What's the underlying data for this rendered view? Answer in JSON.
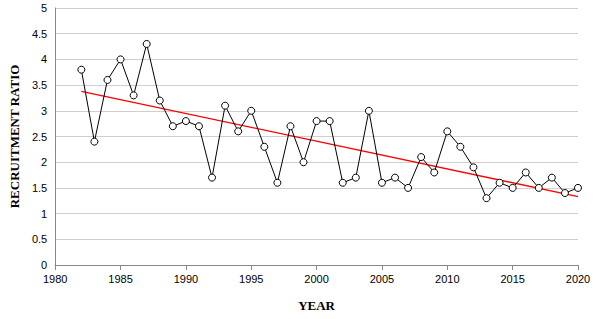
{
  "chart_data": {
    "type": "line",
    "x_label": "YEAR",
    "y_label": "RECRUITMENT RATIO",
    "xlim": [
      1980,
      2020
    ],
    "xticks": [
      1980,
      1985,
      1990,
      1995,
      2000,
      2005,
      2010,
      2015,
      2020
    ],
    "ylim": [
      0,
      5
    ],
    "yticks": [
      0,
      0.5,
      1,
      1.5,
      2,
      2.5,
      3,
      3.5,
      4,
      4.5,
      5
    ],
    "grid": true,
    "series": [
      {
        "type": "line",
        "color": "#000000",
        "marker": "circle",
        "line_style": "solid",
        "x": [
          1982,
          1983,
          1984,
          1985,
          1986,
          1987,
          1988,
          1989,
          1990,
          1991,
          1992,
          1993,
          1994,
          1995,
          1996,
          1997,
          1998,
          1999,
          2000,
          2001,
          2002,
          2003,
          2004,
          2005,
          2006,
          2007,
          2008,
          2009,
          2010,
          2011,
          2012,
          2013,
          2014,
          2015,
          2016,
          2017,
          2018,
          2019,
          2020
        ],
        "values": [
          3.8,
          2.4,
          3.6,
          4.0,
          3.3,
          4.3,
          3.2,
          2.7,
          2.8,
          2.7,
          1.7,
          3.1,
          2.6,
          3.0,
          2.3,
          1.6,
          2.7,
          2.0,
          2.8,
          2.8,
          1.6,
          1.7,
          3.0,
          1.6,
          1.7,
          1.5,
          2.1,
          1.8,
          2.6,
          2.3,
          1.9,
          1.3,
          1.6,
          1.5,
          1.8,
          1.5,
          1.7,
          1.4,
          1.5
        ]
      },
      {
        "type": "line",
        "color": "#ff0000",
        "marker": "none",
        "line_style": "solid",
        "x": [
          1982,
          2020
        ],
        "values": [
          3.38,
          1.33
        ]
      }
    ]
  }
}
